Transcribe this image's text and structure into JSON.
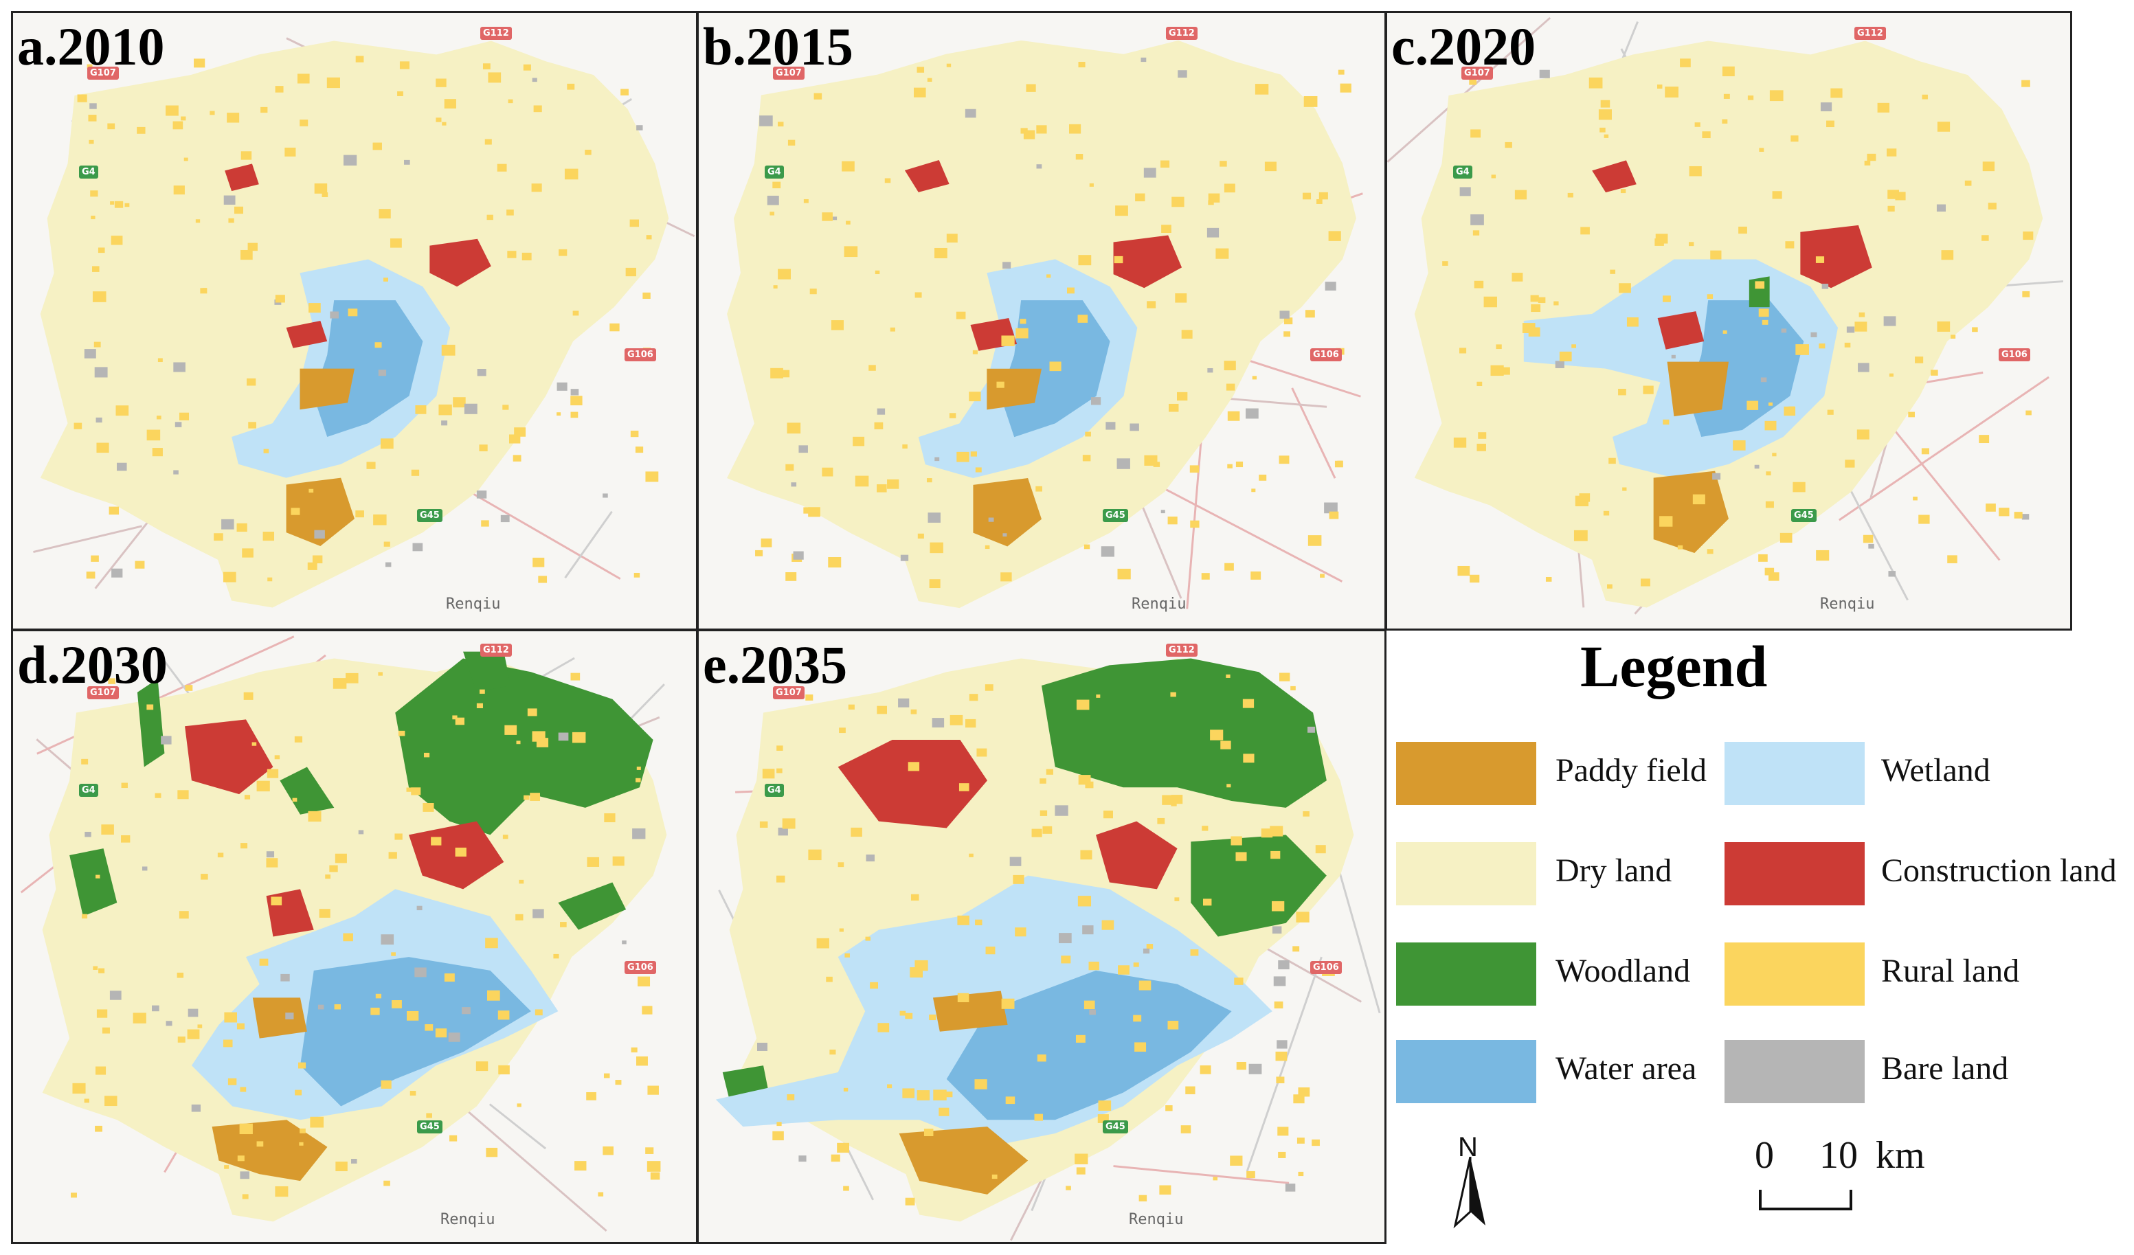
{
  "panels": [
    {
      "label": "a.2010",
      "city": "Renqiu"
    },
    {
      "label": "b.2015",
      "city": "Renqiu"
    },
    {
      "label": "c.2020",
      "city": "Renqiu"
    },
    {
      "label": "d.2030",
      "city": "Renqiu"
    },
    {
      "label": "e.2035",
      "city": "Renqiu"
    }
  ],
  "road_badges": {
    "g112": "G112",
    "g107": "G107",
    "g4": "G4",
    "g106": "G106",
    "g45": "G45"
  },
  "legend": {
    "title": "Legend",
    "items": [
      {
        "label": "Paddy field",
        "color": "#d89a2e"
      },
      {
        "label": "Dry land",
        "color": "#f6f1c4"
      },
      {
        "label": "Woodland",
        "color": "#3f9535"
      },
      {
        "label": "Water area",
        "color": "#79b8e1"
      },
      {
        "label": "Wetland",
        "color": "#bfe2f7"
      },
      {
        "label": "Construction land",
        "color": "#cc3b35"
      },
      {
        "label": "Rural land",
        "color": "#fbd55e"
      },
      {
        "label": "Bare land",
        "color": "#b5b5b5"
      }
    ]
  },
  "north": {
    "letter": "N"
  },
  "scale": {
    "start": "0",
    "end": "10",
    "unit": "km"
  }
}
